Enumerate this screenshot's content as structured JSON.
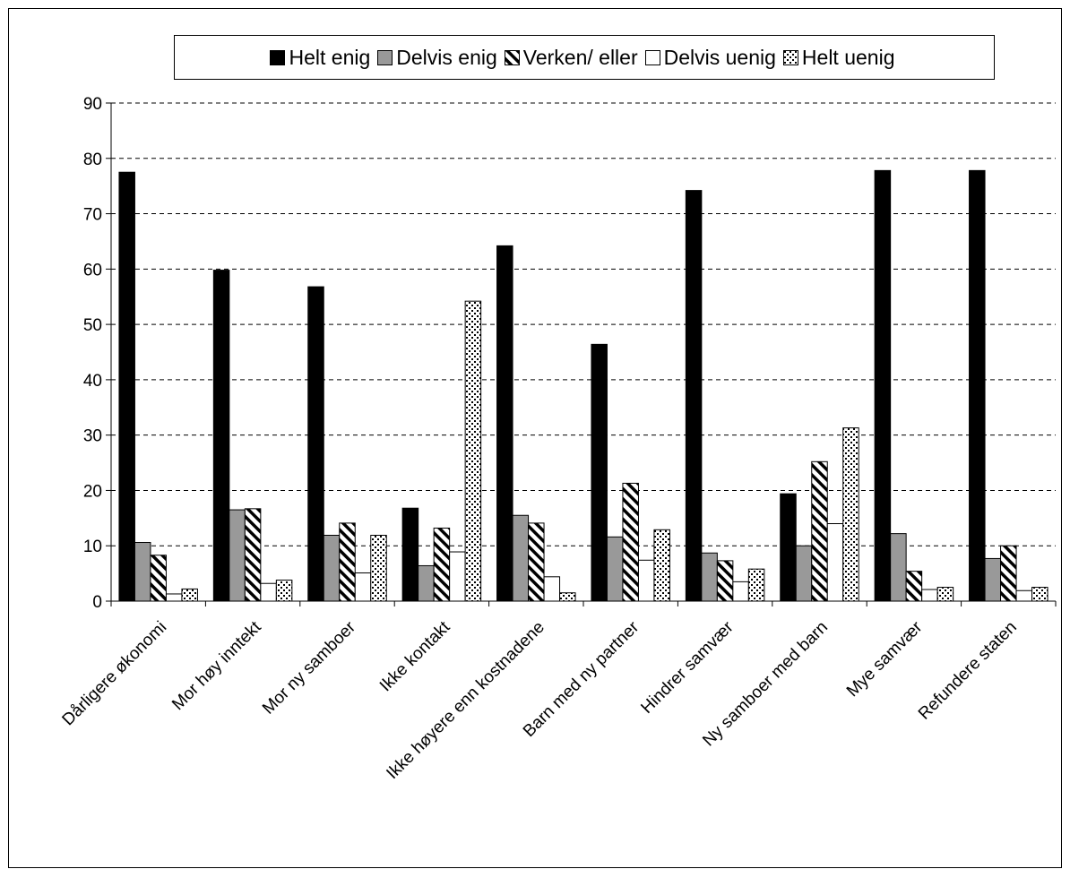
{
  "chart_data": {
    "type": "bar",
    "categories": [
      "Dårligere økonomi",
      "Mor høy inntekt",
      "Mor ny samboer",
      "Ikke kontakt",
      "Ikke høyere enn kostnadene",
      "Barn med ny partner",
      "Hindrer samvær",
      "Ny samboer med barn",
      "Mye samvær",
      "Refundere staten"
    ],
    "series": [
      {
        "name": "Helt enig",
        "pattern": "solid-black",
        "values": [
          77.5,
          59.8,
          56.8,
          16.8,
          64.2,
          46.4,
          74.2,
          19.4,
          77.8,
          77.8
        ]
      },
      {
        "name": "Delvis enig",
        "pattern": "solid-gray",
        "values": [
          10.6,
          16.5,
          11.9,
          6.4,
          15.5,
          11.6,
          8.7,
          10.0,
          12.2,
          7.7
        ]
      },
      {
        "name": "Verken/ eller",
        "pattern": "diagonal-hatch",
        "values": [
          8.3,
          16.7,
          14.1,
          13.2,
          14.1,
          21.3,
          7.3,
          25.2,
          5.4,
          10.0
        ]
      },
      {
        "name": "Delvis uenig",
        "pattern": "white",
        "values": [
          1.3,
          3.2,
          5.1,
          8.9,
          4.4,
          7.4,
          3.5,
          14.0,
          2.1,
          1.9
        ]
      },
      {
        "name": "Helt uenig",
        "pattern": "dotted",
        "values": [
          2.2,
          3.8,
          11.9,
          54.2,
          1.5,
          12.9,
          5.8,
          31.3,
          2.5,
          2.5
        ]
      }
    ],
    "xlabel": "",
    "ylabel": "",
    "ylim": [
      0,
      90
    ],
    "yticks": [
      0,
      10,
      20,
      30,
      40,
      50,
      60,
      70,
      80,
      90
    ],
    "grid": "dashed-horizontal",
    "legend_position": "top",
    "colors": {
      "series1": "#000000",
      "series2": "#999999",
      "series4": "#ffffff",
      "background": "#ffffff"
    }
  }
}
